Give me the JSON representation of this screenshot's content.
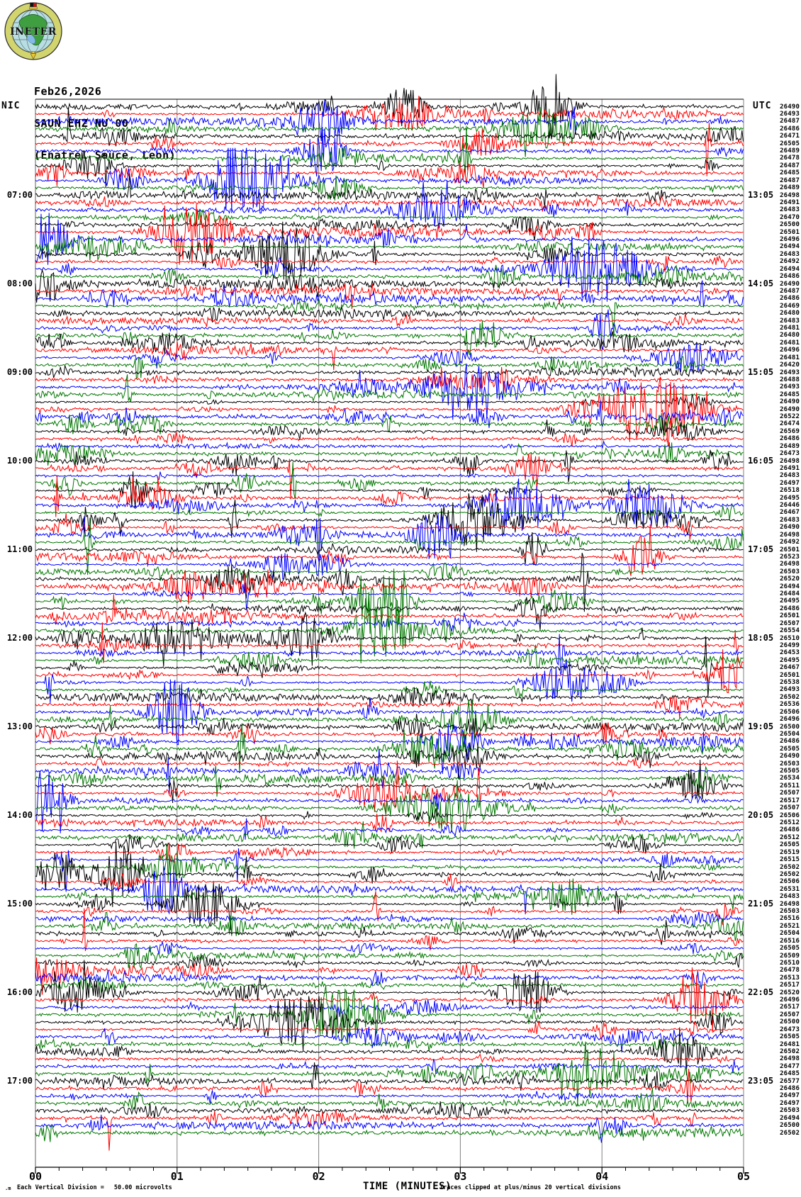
{
  "logo": {
    "text": "INETER"
  },
  "header": {
    "date": "Feb26,2026",
    "station": "SAUN EHZ NU 00",
    "location": "(Enatrel Sauce, Leon)"
  },
  "axes": {
    "left_header": "NIC",
    "right_header": "UTC",
    "left_labels": [
      "07:00",
      "08:00",
      "09:00",
      "10:00",
      "11:00",
      "12:00",
      "13:00",
      "14:00",
      "15:00",
      "16:00",
      "17:00"
    ],
    "right_labels": [
      "13:05",
      "14:05",
      "15:05",
      "16:05",
      "17:05",
      "18:05",
      "19:05",
      "20:05",
      "21:05",
      "22:05",
      "23:05"
    ],
    "x_ticks": [
      "00",
      "01",
      "02",
      "03",
      "04",
      "05"
    ],
    "x_title": "TIME (MINUTES)"
  },
  "footer": {
    "marker": ".m",
    "scale_label": "Each Vertical Division =",
    "scale_value": "50.00 microvolts",
    "clip_note": "Traces clipped at plus/minus 20 vertical divisions"
  },
  "chart_data": {
    "type": "line",
    "subtype": "helicorder-seismogram",
    "title": "SAUN EHZ NU 00 (Enatrel Sauce, Leon) Feb26,2026",
    "xlabel": "TIME (MINUTES)",
    "x_range_minutes": [
      0,
      5
    ],
    "minutes_per_line": 5,
    "lines": 140,
    "grid": "vertical-minute-gridlines",
    "trace_colors": [
      "#000000",
      "#ff0000",
      "#0000ff",
      "#007700"
    ],
    "gridline_color": "#808080",
    "hour_rows": [
      12,
      24,
      36,
      48,
      60,
      72,
      84,
      96,
      108,
      120,
      132
    ],
    "vertical_division_microvolts": 50.0,
    "clip_divisions": 20,
    "counts": [
      26490,
      26493,
      26487,
      26486,
      26471,
      26505,
      26489,
      26478,
      26487,
      26485,
      26487,
      26489,
      26498,
      26491,
      26483,
      26470,
      26500,
      26501,
      26496,
      26494,
      26483,
      26492,
      26494,
      26486,
      26490,
      26487,
      26486,
      26469,
      26480,
      26483,
      26481,
      26480,
      26481,
      26496,
      26481,
      26420,
      26493,
      26488,
      26493,
      26485,
      26490,
      26490,
      26522,
      26474,
      26569,
      26486,
      26489,
      26473,
      26498,
      26491,
      26483,
      26497,
      26518,
      26495,
      26446,
      26467,
      26483,
      26490,
      26498,
      26492,
      26501,
      26523,
      26498,
      26503,
      26520,
      26494,
      26484,
      26495,
      26486,
      26501,
      26507,
      26554,
      26510,
      26499,
      26453,
      26495,
      26467,
      26501,
      26538,
      26493,
      26502,
      26536,
      26506,
      26496,
      26500,
      26504,
      26486,
      26505,
      26490,
      26503,
      26505,
      26534,
      26511,
      26507,
      26517,
      26507,
      26506,
      26512,
      26486,
      26512,
      26505,
      26519,
      26515,
      26502,
      26502,
      26506,
      26531,
      26483,
      26498,
      26503,
      26516,
      26521,
      26504,
      26516,
      26505,
      26509,
      26510,
      26478,
      26513,
      26517,
      26520,
      26496,
      26517,
      26507,
      26500,
      26473,
      26505,
      26481,
      26502,
      26498,
      26477,
      26485,
      26577,
      26486,
      26497,
      26497,
      26503,
      26494,
      26500,
      26502
    ]
  }
}
